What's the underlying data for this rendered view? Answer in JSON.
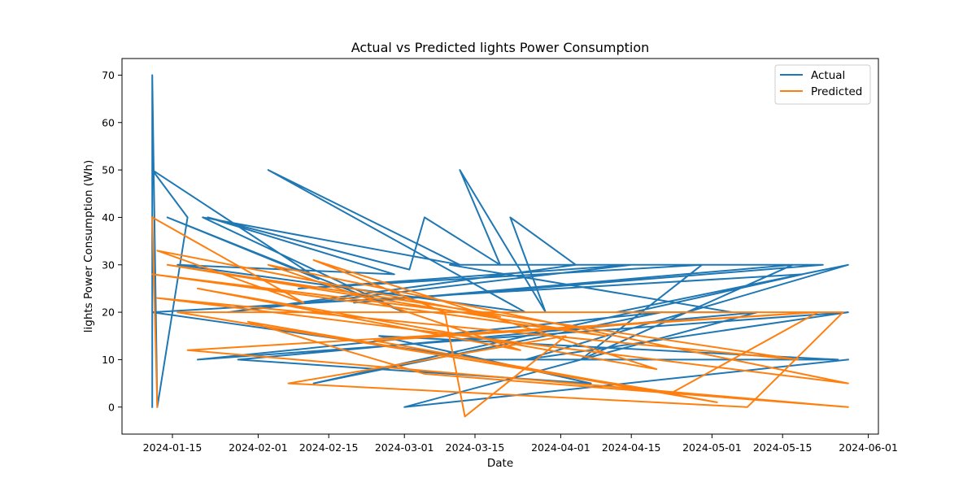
{
  "chart_data": {
    "type": "line",
    "title": "Actual vs Predicted lights Power Consumption",
    "xlabel": "Date",
    "ylabel": "lights Power Consumption (Wh)",
    "x_is_date": true,
    "xlim": [
      "2024-01-05",
      "2024-06-03"
    ],
    "ylim": [
      -5.7,
      73.5
    ],
    "x_ticks": [
      "2024-01-15",
      "2024-02-01",
      "2024-02-15",
      "2024-03-01",
      "2024-03-15",
      "2024-04-01",
      "2024-04-15",
      "2024-05-01",
      "2024-05-15",
      "2024-06-01"
    ],
    "y_ticks": [
      0,
      10,
      20,
      30,
      40,
      50,
      60,
      70
    ],
    "legend": {
      "position": "top-right"
    },
    "grid": false,
    "series": [
      {
        "name": "Actual",
        "color": "#1f77b4",
        "x": [
          "2024-01-11",
          "2024-01-11",
          "2024-01-12",
          "2024-01-18",
          "2024-01-11",
          "2024-02-13",
          "2024-01-14",
          "2024-03-01",
          "2024-01-21",
          "2024-03-12",
          "2024-02-03",
          "2024-03-25",
          "2024-01-16",
          "2024-02-28",
          "2024-01-22",
          "2024-03-02",
          "2024-03-05",
          "2024-03-20",
          "2024-03-12",
          "2024-03-29",
          "2024-03-22",
          "2024-04-04",
          "2024-01-26",
          "2024-04-15",
          "2024-02-09",
          "2024-04-29",
          "2024-04-05",
          "2024-05-17",
          "2024-02-20",
          "2024-05-23",
          "2024-03-10",
          "2024-05-05",
          "2024-04-12",
          "2024-05-28",
          "2024-03-25",
          "2024-05-28",
          "2024-01-20",
          "2024-04-21",
          "2024-02-12",
          "2024-05-19",
          "2024-01-11",
          "2024-03-17",
          "2024-05-26",
          "2024-02-25",
          "2024-04-07",
          "2024-01-28",
          "2024-05-10",
          "2024-03-01",
          "2024-05-28"
        ],
        "y": [
          0,
          70,
          0,
          40,
          50,
          27,
          40,
          20,
          40,
          30,
          50,
          20,
          30,
          28,
          40,
          29,
          40,
          30,
          50,
          20,
          40,
          30,
          20,
          30,
          25,
          30,
          10,
          30,
          22,
          30,
          30,
          20,
          20,
          30,
          10,
          20,
          10,
          20,
          5,
          28,
          20,
          10,
          10,
          15,
          5,
          10,
          20,
          0,
          10
        ]
      },
      {
        "name": "Predicted",
        "color": "#ff7f0e",
        "x": [
          "2024-01-11",
          "2024-01-12",
          "2024-01-11",
          "2024-02-10",
          "2024-01-12",
          "2024-03-20",
          "2024-01-11",
          "2024-04-10",
          "2024-01-14",
          "2024-05-18",
          "2024-01-12",
          "2024-05-28",
          "2024-02-03",
          "2024-03-24",
          "2024-01-20",
          "2024-04-20",
          "2024-02-12",
          "2024-03-09",
          "2024-03-13",
          "2024-04-02",
          "2024-02-07",
          "2024-05-08",
          "2024-05-27",
          "2024-01-16",
          "2024-04-23",
          "2024-05-22",
          "2024-01-18",
          "2024-05-28",
          "2024-03-05",
          "2024-01-30",
          "2024-05-02",
          "2024-02-24",
          "2024-05-22"
        ],
        "y": [
          40,
          0,
          40,
          22,
          33,
          19,
          28,
          15,
          30,
          10,
          23,
          5,
          30,
          12,
          25,
          8,
          31,
          20,
          -2,
          15,
          5,
          0,
          20,
          20,
          3,
          20,
          12,
          0,
          7,
          18,
          1,
          14,
          20
        ]
      }
    ]
  }
}
